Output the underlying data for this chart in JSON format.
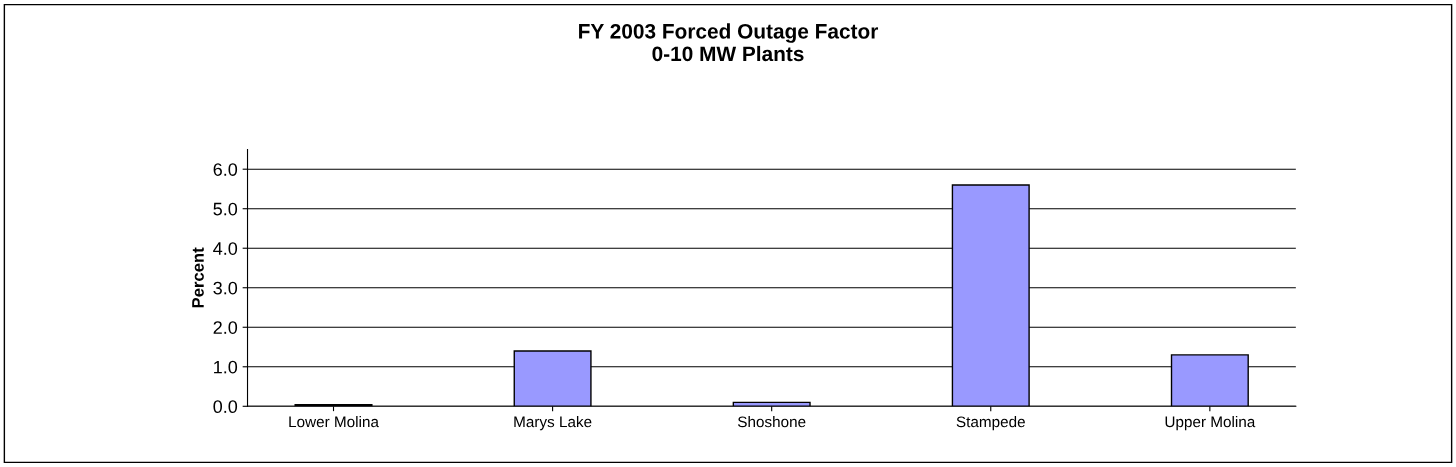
{
  "chart_data": {
    "type": "bar",
    "title": "FY 2003 Forced Outage Factor\n0-10 MW Plants",
    "ylabel": "Percent",
    "categories": [
      "Lower Molina",
      "Marys Lake",
      "Shoshone",
      "Stampede",
      "Upper Molina"
    ],
    "values": [
      0.04,
      1.4,
      0.1,
      5.6,
      1.3
    ],
    "color": "#9999ff",
    "ylim": [
      0,
      6.5
    ],
    "yticks": [
      {
        "value": 0,
        "label": "0.0"
      },
      {
        "value": 1,
        "label": "1.0"
      },
      {
        "value": 2,
        "label": "2.0"
      },
      {
        "value": 3,
        "label": "3.0"
      },
      {
        "value": 4,
        "label": "4.0"
      },
      {
        "value": 5,
        "label": "5.0"
      },
      {
        "value": 6,
        "label": "6.0"
      }
    ],
    "grid": "y",
    "legend": false
  }
}
